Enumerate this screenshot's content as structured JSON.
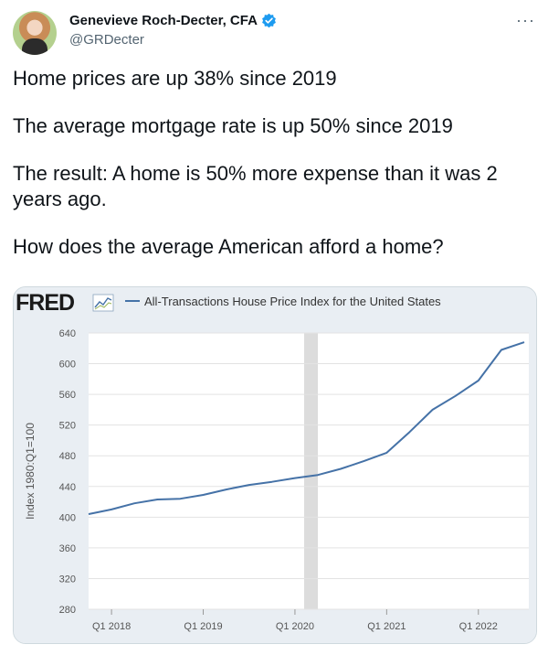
{
  "tweet": {
    "author_name": "Genevieve Roch-Decter, CFA",
    "handle": "@GRDecter",
    "more_label": "···",
    "paragraphs": [
      "Home prices are up 38% since 2019",
      "The average mortgage rate is up 50% since 2019",
      "The result: A home is 50% more expense than it was 2 years ago.",
      "How does the average American afford a home?"
    ]
  },
  "colors": {
    "line": "#4572a7",
    "recession": "#dcdcdc",
    "verified": "#1d9bf0",
    "card_bg": "#e9eef3"
  },
  "chart_data": {
    "type": "line",
    "source_logo": "FRED",
    "legend": "All-Transactions House Price Index for the United States",
    "ylabel": "Index 1980:Q1=100",
    "ylim": [
      280,
      640
    ],
    "yticks": [
      640,
      600,
      560,
      520,
      480,
      440,
      400,
      360,
      320,
      280
    ],
    "x_tick_labels": [
      "Q1 2018",
      "Q1 2019",
      "Q1 2020",
      "Q1 2021",
      "Q1 2022"
    ],
    "x_tick_positions": [
      2018.0,
      2019.0,
      2020.0,
      2021.0,
      2022.0
    ],
    "xlim": [
      2017.75,
      2022.55
    ],
    "recession_band": [
      2020.1,
      2020.25
    ],
    "series": [
      {
        "x": [
          2017.75,
          2018.0,
          2018.25,
          2018.5,
          2018.75,
          2019.0,
          2019.25,
          2019.5,
          2019.75,
          2020.0,
          2020.25,
          2020.5,
          2020.75,
          2021.0,
          2021.25,
          2021.5,
          2021.75,
          2022.0,
          2022.25,
          2022.5
        ],
        "values": [
          404,
          410,
          418,
          423,
          424,
          429,
          436,
          442,
          446,
          451,
          455,
          463,
          473,
          484,
          511,
          540,
          558,
          578,
          618,
          628
        ]
      }
    ]
  }
}
